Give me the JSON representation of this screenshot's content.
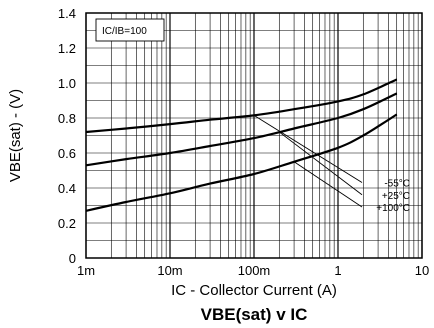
{
  "chart_data": {
    "type": "line",
    "title_main": "VBE(sat)",
    "title_rest": " v IC",
    "xlabel": "IC - Collector Current (A)",
    "ylabel": "VBE(sat) - (V)",
    "annotation": "IC/IB=100",
    "xscale": "log",
    "xlim": [
      0.001,
      10
    ],
    "ylim": [
      0,
      1.4
    ],
    "grid": true,
    "x_ticks": [
      {
        "value": 0.001,
        "label": "1m"
      },
      {
        "value": 0.01,
        "label": "10m"
      },
      {
        "value": 0.1,
        "label": "100m"
      },
      {
        "value": 1,
        "label": "1"
      },
      {
        "value": 10,
        "label": "10"
      }
    ],
    "y_ticks": [
      {
        "value": 0,
        "label": "0"
      },
      {
        "value": 0.2,
        "label": "0.2"
      },
      {
        "value": 0.4,
        "label": "0.4"
      },
      {
        "value": 0.6,
        "label": "0.6"
      },
      {
        "value": 0.8,
        "label": "0.8"
      },
      {
        "value": 1.0,
        "label": "1.0"
      },
      {
        "value": 1.2,
        "label": "1.2"
      },
      {
        "value": 1.4,
        "label": "1.4"
      }
    ],
    "series": [
      {
        "name": "-55°C",
        "x": [
          0.001,
          0.003,
          0.01,
          0.03,
          0.1,
          0.3,
          1,
          2,
          5
        ],
        "y": [
          0.72,
          0.74,
          0.765,
          0.79,
          0.815,
          0.85,
          0.895,
          0.935,
          1.02
        ]
      },
      {
        "name": "+25°C",
        "x": [
          0.001,
          0.003,
          0.01,
          0.03,
          0.1,
          0.3,
          1,
          2,
          5
        ],
        "y": [
          0.53,
          0.565,
          0.6,
          0.64,
          0.685,
          0.74,
          0.8,
          0.85,
          0.94
        ]
      },
      {
        "name": "+100°C",
        "x": [
          0.001,
          0.003,
          0.01,
          0.03,
          0.1,
          0.3,
          1,
          2,
          5
        ],
        "y": [
          0.27,
          0.32,
          0.37,
          0.425,
          0.48,
          0.55,
          0.63,
          0.7,
          0.82
        ]
      }
    ],
    "legend": {
      "labels": [
        "-55°C",
        "+25°C",
        "+100°C"
      ],
      "leader_start_x": [
        0.1,
        0.2,
        0.3
      ]
    }
  }
}
